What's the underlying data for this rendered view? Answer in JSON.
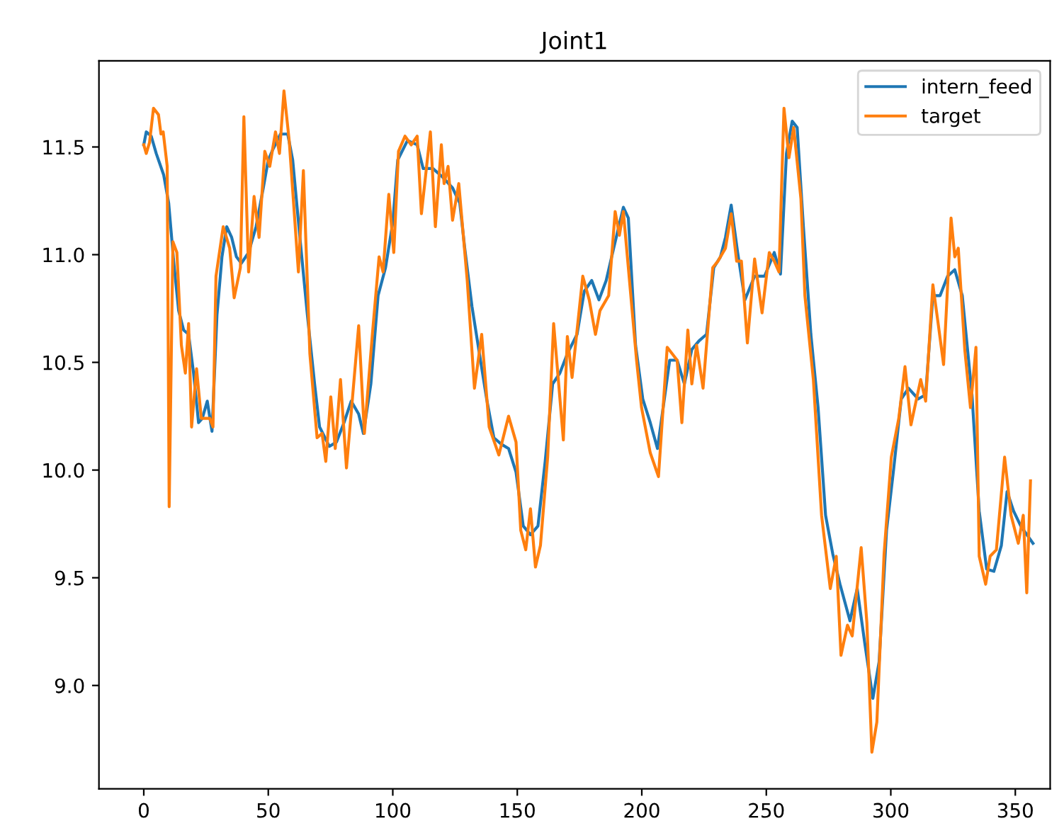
{
  "chart_data": {
    "type": "line",
    "title": "Joint1",
    "xlim": [
      -18,
      364
    ],
    "ylim": [
      8.52,
      11.9
    ],
    "xticks": [
      0,
      50,
      100,
      150,
      200,
      250,
      300,
      350
    ],
    "yticks": [
      {
        "value": 9.0,
        "label": "9.0"
      },
      {
        "value": 9.5,
        "label": "9.5"
      },
      {
        "value": 10.0,
        "label": "10.0"
      },
      {
        "value": 10.5,
        "label": "10.5"
      },
      {
        "value": 11.0,
        "label": "11.0"
      },
      {
        "value": 11.5,
        "label": "11.5"
      }
    ],
    "legend": "top right",
    "grid": false,
    "series": [
      {
        "name": "intern_feed",
        "color": "#1f77b4",
        "x": [
          0,
          1,
          3,
          5,
          8,
          10,
          12,
          14,
          16,
          18,
          20,
          22,
          23.5,
          25.5,
          27.4,
          29.4,
          31.4,
          33.3,
          35.3,
          37.2,
          39.2,
          42.1,
          45.1,
          48,
          50,
          51.9,
          54.9,
          57.8,
          59.8,
          62.7,
          65.7,
          68.6,
          70.6,
          74.5,
          77.4,
          80.4,
          83.3,
          86.3,
          88.2,
          91.2,
          94.1,
          97.1,
          100,
          102,
          105.9,
          109.8,
          112.2,
          116.1,
          120,
          124,
          126.9,
          128.9,
          131.8,
          134.8,
          137.7,
          140.6,
          143.6,
          146.5,
          149.5,
          152.4,
          155.3,
          158.3,
          161.2,
          164.2,
          167.1,
          170.1,
          174,
          176.9,
          179.9,
          182.8,
          185.7,
          188.7,
          192.6,
          194.6,
          197.5,
          200.4,
          203.4,
          206.3,
          209.3,
          211.2,
          214.2,
          217.1,
          220.1,
          223,
          226,
          228.9,
          231.6,
          233.6,
          235.9,
          238.5,
          241.4,
          245.3,
          249.3,
          253.2,
          255.7,
          258.1,
          260.4,
          262.4,
          264.9,
          267.9,
          270.8,
          273.8,
          276.7,
          279.6,
          283.6,
          286.5,
          289.5,
          292.8,
          295.3,
          298.3,
          301.2,
          304.2,
          307.1,
          311,
          314,
          316.9,
          319.8,
          322.8,
          325.7,
          328.7,
          332.6,
          335.5,
          338.5,
          341.4,
          344.4,
          346.7,
          349.3,
          352.2,
          357.1
        ],
        "values": [
          11.51,
          11.57,
          11.55,
          11.47,
          11.37,
          11.24,
          10.97,
          10.74,
          10.65,
          10.63,
          10.45,
          10.22,
          10.24,
          10.32,
          10.18,
          10.72,
          10.99,
          11.13,
          11.08,
          10.99,
          10.96,
          11.01,
          11.13,
          11.31,
          11.44,
          11.49,
          11.56,
          11.56,
          11.44,
          11.08,
          10.72,
          10.4,
          10.2,
          10.11,
          10.13,
          10.22,
          10.32,
          10.26,
          10.17,
          10.4,
          10.81,
          10.94,
          11.15,
          11.44,
          11.53,
          11.51,
          11.4,
          11.4,
          11.36,
          11.31,
          11.24,
          11.03,
          10.76,
          10.54,
          10.33,
          10.15,
          10.12,
          10.1,
          9.99,
          9.74,
          9.7,
          9.74,
          10.04,
          10.4,
          10.45,
          10.54,
          10.63,
          10.83,
          10.88,
          10.79,
          10.88,
          11.03,
          11.22,
          11.17,
          10.58,
          10.33,
          10.22,
          10.1,
          10.35,
          10.51,
          10.51,
          10.4,
          10.56,
          10.6,
          10.63,
          10.94,
          10.99,
          11.08,
          11.23,
          11.01,
          10.79,
          10.9,
          10.9,
          11.01,
          10.91,
          11.47,
          11.62,
          11.59,
          11.13,
          10.63,
          10.29,
          9.79,
          9.61,
          9.47,
          9.3,
          9.45,
          9.2,
          8.94,
          9.11,
          9.72,
          10.01,
          10.33,
          10.38,
          10.33,
          10.35,
          10.81,
          10.81,
          10.9,
          10.93,
          10.81,
          10.35,
          9.81,
          9.54,
          9.53,
          9.65,
          9.9,
          9.81,
          9.74,
          9.66
        ]
      },
      {
        "name": "target",
        "color": "#ff7f0e",
        "x": [
          0,
          1,
          2.3,
          3.9,
          5.9,
          6.9,
          7.8,
          9.4,
          10.2,
          11.7,
          13.3,
          15.1,
          16.7,
          18,
          19.2,
          21.2,
          23.1,
          26.5,
          27.8,
          29,
          31.9,
          34.5,
          36.3,
          38.8,
          40.2,
          42.1,
          44.3,
          46.3,
          48.6,
          50.6,
          52.9,
          54.5,
          56.3,
          58.4,
          62.1,
          64.1,
          66.7,
          69.6,
          71.6,
          73.1,
          75.1,
          76.9,
          79,
          81.4,
          86.3,
          88.6,
          91.8,
          94.5,
          96.1,
          98.4,
          100.4,
          102.3,
          104.9,
          107.4,
          109.8,
          111.5,
          115.1,
          117.1,
          119.5,
          120.6,
          122.2,
          124,
          126.5,
          129.9,
          132.8,
          135.7,
          138.7,
          142.6,
          146.5,
          149.5,
          151.4,
          153.4,
          155.3,
          157.3,
          159.3,
          162.2,
          164.6,
          168.5,
          170.1,
          172,
          176.3,
          178.9,
          181.4,
          183.2,
          186.7,
          189.3,
          191,
          192.6,
          197.9,
          199.9,
          203.4,
          206.7,
          210.2,
          214.2,
          216.1,
          218.5,
          220.1,
          222,
          224.6,
          228.5,
          230.6,
          233.6,
          235.9,
          238.1,
          240,
          242.4,
          245.3,
          248.3,
          251.2,
          253.2,
          255.1,
          257.1,
          259.1,
          261,
          263.9,
          265.5,
          268.9,
          272.2,
          275.7,
          278.1,
          280,
          282.6,
          284.5,
          288.1,
          290.4,
          292.4,
          294.4,
          297.3,
          300.2,
          303.2,
          305.7,
          308.1,
          312,
          314,
          316.9,
          318.9,
          321.2,
          324.2,
          325.7,
          327.1,
          329.7,
          332,
          334.2,
          335.5,
          338.1,
          339.9,
          342.4,
          345.7,
          348.3,
          351.2,
          353.2,
          354.6,
          356.1
        ],
        "values": [
          11.51,
          11.47,
          11.52,
          11.68,
          11.65,
          11.56,
          11.57,
          11.41,
          9.83,
          11.06,
          11.01,
          10.58,
          10.45,
          10.68,
          10.2,
          10.47,
          10.24,
          10.24,
          10.2,
          10.9,
          11.13,
          11.03,
          10.8,
          10.94,
          11.64,
          10.92,
          11.27,
          11.08,
          11.48,
          11.41,
          11.57,
          11.47,
          11.76,
          11.53,
          10.92,
          11.39,
          10.54,
          10.15,
          10.17,
          10.04,
          10.34,
          10.1,
          10.42,
          10.01,
          10.67,
          10.17,
          10.63,
          10.99,
          10.92,
          11.28,
          11.01,
          11.48,
          11.55,
          11.51,
          11.55,
          11.19,
          11.57,
          11.13,
          11.51,
          11.33,
          11.41,
          11.16,
          11.33,
          10.88,
          10.38,
          10.63,
          10.2,
          10.07,
          10.25,
          10.13,
          9.72,
          9.63,
          9.82,
          9.55,
          9.65,
          10.06,
          10.68,
          10.14,
          10.62,
          10.43,
          10.9,
          10.79,
          10.63,
          10.74,
          10.81,
          11.2,
          11.09,
          11.2,
          10.51,
          10.29,
          10.08,
          9.97,
          10.57,
          10.51,
          10.22,
          10.65,
          10.4,
          10.58,
          10.38,
          10.94,
          10.97,
          11.03,
          11.19,
          10.97,
          10.97,
          10.59,
          10.98,
          10.73,
          11.01,
          10.97,
          10.92,
          11.68,
          11.45,
          11.59,
          11.26,
          10.81,
          10.42,
          9.79,
          9.45,
          9.6,
          9.14,
          9.28,
          9.23,
          9.64,
          9.29,
          8.69,
          8.83,
          9.61,
          10.06,
          10.24,
          10.48,
          10.21,
          10.42,
          10.32,
          10.86,
          10.69,
          10.49,
          11.17,
          10.99,
          11.03,
          10.56,
          10.29,
          10.57,
          9.6,
          9.47,
          9.6,
          9.63,
          10.06,
          9.79,
          9.66,
          9.79,
          9.43,
          9.95
        ]
      }
    ]
  }
}
